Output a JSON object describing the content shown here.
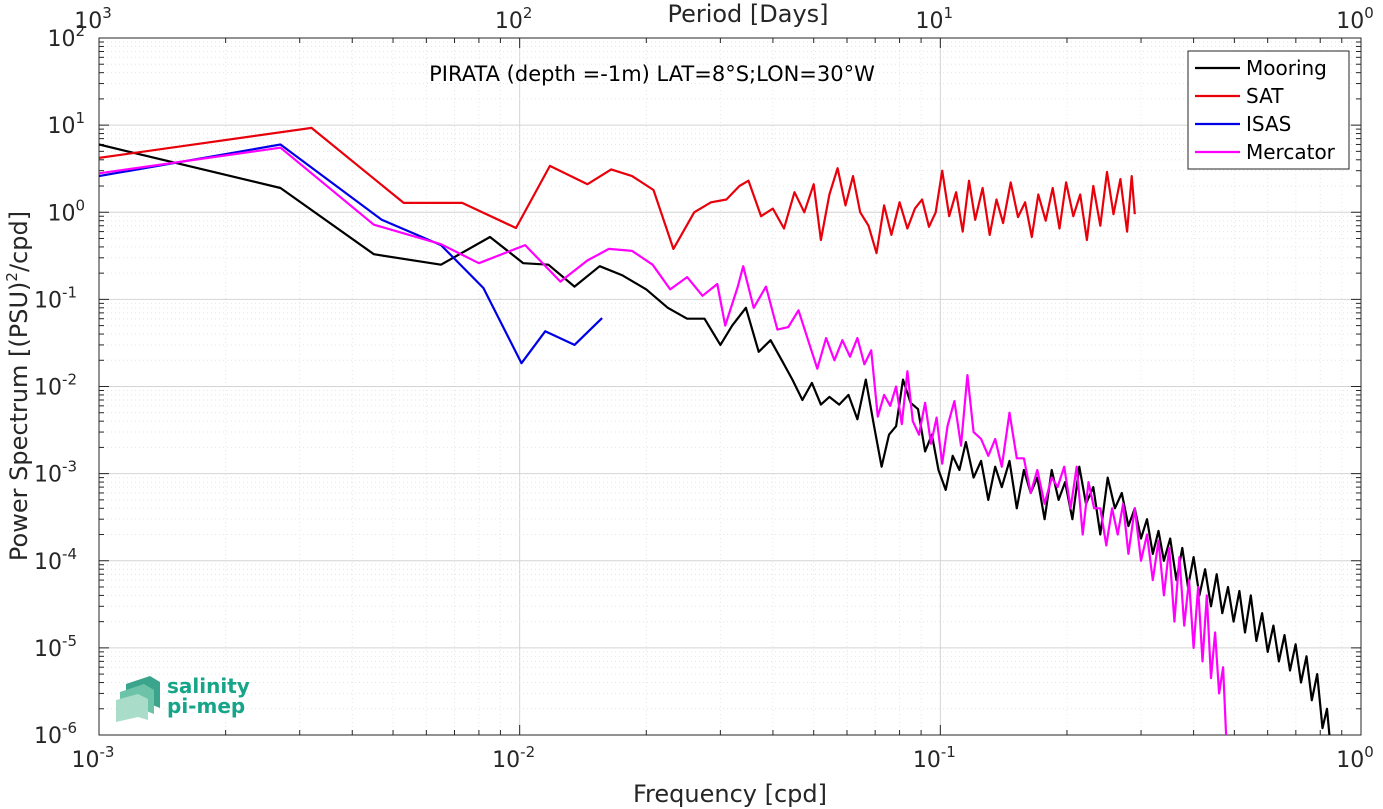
{
  "chart_data": {
    "type": "line",
    "title": "",
    "annotation": "PIRATA (depth =-1m) LAT=8°S;LON=30°W",
    "xlabel": "Frequency [cpd]",
    "ylabel_main": "Power Spectrum [(PSU)",
    "ylabel_sup": "2",
    "ylabel_tail": "/cpd]",
    "top_xlabel": "Period [Days]",
    "x_scale": "log",
    "y_scale": "log",
    "xlim": [
      0.001,
      1
    ],
    "ylim": [
      1e-06,
      100
    ],
    "grid": true,
    "legend_position": "top-right",
    "x_ticks": [
      {
        "base": "10",
        "exp": "-3",
        "value": 0.001
      },
      {
        "base": "10",
        "exp": "-2",
        "value": 0.01
      },
      {
        "base": "10",
        "exp": "-1",
        "value": 0.1
      },
      {
        "base": "10",
        "exp": "0",
        "value": 1
      }
    ],
    "top_ticks": [
      {
        "base": "10",
        "exp": "3",
        "value": 0.001
      },
      {
        "base": "10",
        "exp": "2",
        "value": 0.01
      },
      {
        "base": "10",
        "exp": "1",
        "value": 0.1
      },
      {
        "base": "10",
        "exp": "0",
        "value": 1
      }
    ],
    "y_ticks": [
      {
        "base": "10",
        "exp": "-6",
        "value": 1e-06
      },
      {
        "base": "10",
        "exp": "-5",
        "value": 1e-05
      },
      {
        "base": "10",
        "exp": "-4",
        "value": 0.0001
      },
      {
        "base": "10",
        "exp": "-3",
        "value": 0.001
      },
      {
        "base": "10",
        "exp": "-2",
        "value": 0.01
      },
      {
        "base": "10",
        "exp": "-1",
        "value": 0.1
      },
      {
        "base": "10",
        "exp": "0",
        "value": 1
      },
      {
        "base": "10",
        "exp": "1",
        "value": 10
      },
      {
        "base": "10",
        "exp": "2",
        "value": 100
      }
    ],
    "series": [
      {
        "name": "Mooring",
        "color": "#000000",
        "points": [
          [
            0.001,
            6.0
          ],
          [
            0.0027,
            1.9
          ],
          [
            0.0045,
            0.33
          ],
          [
            0.0065,
            0.25
          ],
          [
            0.0085,
            0.52
          ],
          [
            0.0102,
            0.26
          ],
          [
            0.0117,
            0.25
          ],
          [
            0.0135,
            0.14
          ],
          [
            0.0155,
            0.24
          ],
          [
            0.0175,
            0.19
          ],
          [
            0.02,
            0.13
          ],
          [
            0.0225,
            0.08
          ],
          [
            0.025,
            0.06
          ],
          [
            0.0275,
            0.06
          ],
          [
            0.03,
            0.03
          ],
          [
            0.032,
            0.05
          ],
          [
            0.0345,
            0.08
          ],
          [
            0.037,
            0.025
          ],
          [
            0.0395,
            0.034
          ],
          [
            0.042,
            0.02
          ],
          [
            0.0445,
            0.012
          ],
          [
            0.047,
            0.007
          ],
          [
            0.0495,
            0.011
          ],
          [
            0.052,
            0.0062
          ],
          [
            0.0545,
            0.0076
          ],
          [
            0.0575,
            0.0062
          ],
          [
            0.0605,
            0.008
          ],
          [
            0.0635,
            0.0042
          ],
          [
            0.0665,
            0.012
          ],
          [
            0.0695,
            0.0036
          ],
          [
            0.0725,
            0.0012
          ],
          [
            0.0755,
            0.0028
          ],
          [
            0.0785,
            0.0035
          ],
          [
            0.0815,
            0.012
          ],
          [
            0.085,
            0.0065
          ],
          [
            0.0885,
            0.0055
          ],
          [
            0.092,
            0.0018
          ],
          [
            0.0955,
            0.0028
          ],
          [
            0.099,
            0.0011
          ],
          [
            0.103,
            0.00065
          ],
          [
            0.107,
            0.0016
          ],
          [
            0.111,
            0.0011
          ],
          [
            0.115,
            0.0023
          ],
          [
            0.12,
            0.0009
          ],
          [
            0.125,
            0.0014
          ],
          [
            0.13,
            0.0005
          ],
          [
            0.135,
            0.0012
          ],
          [
            0.14,
            0.0007
          ],
          [
            0.146,
            0.0014
          ],
          [
            0.152,
            0.0004
          ],
          [
            0.158,
            0.0011
          ],
          [
            0.164,
            0.0006
          ],
          [
            0.17,
            0.0009
          ],
          [
            0.177,
            0.0003
          ],
          [
            0.184,
            0.0011
          ],
          [
            0.191,
            0.0005
          ],
          [
            0.198,
            0.0008
          ],
          [
            0.206,
            0.0003
          ],
          [
            0.214,
            0.0012
          ],
          [
            0.222,
            0.00045
          ],
          [
            0.231,
            0.0007
          ],
          [
            0.24,
            0.0002
          ],
          [
            0.25,
            0.0009
          ],
          [
            0.26,
            0.0004
          ],
          [
            0.27,
            0.0006
          ],
          [
            0.28,
            0.00025
          ],
          [
            0.29,
            0.0004
          ],
          [
            0.3,
            0.00018
          ],
          [
            0.31,
            0.0003
          ],
          [
            0.32,
            0.00012
          ],
          [
            0.33,
            0.00022
          ],
          [
            0.34,
            0.0001
          ],
          [
            0.352,
            0.00018
          ],
          [
            0.364,
            6e-05
          ],
          [
            0.376,
            0.00014
          ],
          [
            0.388,
            5e-05
          ],
          [
            0.4,
            0.00011
          ],
          [
            0.413,
            4e-05
          ],
          [
            0.426,
            8e-05
          ],
          [
            0.44,
            3e-05
          ],
          [
            0.454,
            7e-05
          ],
          [
            0.468,
            2.5e-05
          ],
          [
            0.483,
            5e-05
          ],
          [
            0.498,
            2e-05
          ],
          [
            0.514,
            4.5e-05
          ],
          [
            0.53,
            1.5e-05
          ],
          [
            0.547,
            4e-05
          ],
          [
            0.564,
            1.2e-05
          ],
          [
            0.582,
            2.5e-05
          ],
          [
            0.6,
            9e-06
          ],
          [
            0.619,
            1.8e-05
          ],
          [
            0.638,
            7e-06
          ],
          [
            0.658,
            1.4e-05
          ],
          [
            0.678,
            5.5e-06
          ],
          [
            0.699,
            1.1e-05
          ],
          [
            0.72,
            4e-06
          ],
          [
            0.742,
            8e-06
          ],
          [
            0.764,
            2.5e-06
          ],
          [
            0.787,
            5e-06
          ],
          [
            0.81,
            1.2e-06
          ],
          [
            0.83,
            2e-06
          ],
          [
            0.845,
            8e-07
          ]
        ]
      },
      {
        "name": "SAT",
        "color": "#e8000b",
        "points": [
          [
            0.001,
            4.2
          ],
          [
            0.0032,
            9.3
          ],
          [
            0.0053,
            1.28
          ],
          [
            0.0073,
            1.28
          ],
          [
            0.0098,
            0.66
          ],
          [
            0.0118,
            3.4
          ],
          [
            0.0145,
            2.1
          ],
          [
            0.0165,
            3.1
          ],
          [
            0.0185,
            2.6
          ],
          [
            0.0208,
            1.8
          ],
          [
            0.0232,
            0.38
          ],
          [
            0.026,
            1.0
          ],
          [
            0.0285,
            1.3
          ],
          [
            0.031,
            1.4
          ],
          [
            0.0333,
            2.0
          ],
          [
            0.035,
            2.3
          ],
          [
            0.0375,
            0.9
          ],
          [
            0.04,
            1.1
          ],
          [
            0.0425,
            0.65
          ],
          [
            0.045,
            1.7
          ],
          [
            0.0475,
            1.0
          ],
          [
            0.05,
            2.1
          ],
          [
            0.052,
            0.48
          ],
          [
            0.0545,
            1.6
          ],
          [
            0.057,
            3.2
          ],
          [
            0.0595,
            1.2
          ],
          [
            0.062,
            2.6
          ],
          [
            0.0645,
            1.0
          ],
          [
            0.0675,
            0.7
          ],
          [
            0.0705,
            0.34
          ],
          [
            0.0735,
            1.2
          ],
          [
            0.0765,
            0.55
          ],
          [
            0.08,
            1.3
          ],
          [
            0.0835,
            0.65
          ],
          [
            0.087,
            1.1
          ],
          [
            0.0905,
            1.4
          ],
          [
            0.094,
            0.68
          ],
          [
            0.0975,
            1.0
          ],
          [
            0.101,
            3.0
          ],
          [
            0.105,
            0.9
          ],
          [
            0.109,
            1.7
          ],
          [
            0.113,
            0.6
          ],
          [
            0.117,
            2.3
          ],
          [
            0.121,
            0.82
          ],
          [
            0.126,
            1.9
          ],
          [
            0.131,
            0.55
          ],
          [
            0.136,
            1.4
          ],
          [
            0.141,
            0.75
          ],
          [
            0.147,
            2.2
          ],
          [
            0.153,
            0.88
          ],
          [
            0.159,
            1.3
          ],
          [
            0.165,
            0.52
          ],
          [
            0.171,
            1.6
          ],
          [
            0.178,
            0.8
          ],
          [
            0.185,
            1.9
          ],
          [
            0.192,
            0.65
          ],
          [
            0.199,
            2.2
          ],
          [
            0.207,
            0.9
          ],
          [
            0.215,
            1.6
          ],
          [
            0.223,
            0.48
          ],
          [
            0.231,
            2.0
          ],
          [
            0.24,
            0.7
          ],
          [
            0.249,
            2.9
          ],
          [
            0.258,
            0.95
          ],
          [
            0.268,
            2.4
          ],
          [
            0.278,
            0.6
          ],
          [
            0.285,
            2.6
          ],
          [
            0.29,
            0.95
          ]
        ]
      },
      {
        "name": "ISAS",
        "color": "#0000e6",
        "points": [
          [
            0.001,
            2.6
          ],
          [
            0.0027,
            6.0
          ],
          [
            0.0047,
            0.82
          ],
          [
            0.0065,
            0.42
          ],
          [
            0.0082,
            0.135
          ],
          [
            0.0101,
            0.0185
          ],
          [
            0.0115,
            0.043
          ],
          [
            0.0135,
            0.03
          ],
          [
            0.0157,
            0.061
          ]
        ]
      },
      {
        "name": "Mercator",
        "color": "#ff00ff",
        "points": [
          [
            0.001,
            2.8
          ],
          [
            0.0027,
            5.5
          ],
          [
            0.0045,
            0.72
          ],
          [
            0.0065,
            0.43
          ],
          [
            0.008,
            0.26
          ],
          [
            0.0103,
            0.42
          ],
          [
            0.0125,
            0.16
          ],
          [
            0.0145,
            0.28
          ],
          [
            0.0163,
            0.38
          ],
          [
            0.0185,
            0.36
          ],
          [
            0.0207,
            0.25
          ],
          [
            0.0228,
            0.13
          ],
          [
            0.025,
            0.18
          ],
          [
            0.0272,
            0.11
          ],
          [
            0.0295,
            0.15
          ],
          [
            0.0308,
            0.05
          ],
          [
            0.033,
            0.14
          ],
          [
            0.034,
            0.24
          ],
          [
            0.036,
            0.08
          ],
          [
            0.0385,
            0.14
          ],
          [
            0.041,
            0.045
          ],
          [
            0.0435,
            0.048
          ],
          [
            0.046,
            0.075
          ],
          [
            0.0485,
            0.034
          ],
          [
            0.051,
            0.016
          ],
          [
            0.0535,
            0.036
          ],
          [
            0.056,
            0.02
          ],
          [
            0.0585,
            0.034
          ],
          [
            0.061,
            0.022
          ],
          [
            0.0635,
            0.036
          ],
          [
            0.066,
            0.018
          ],
          [
            0.0685,
            0.026
          ],
          [
            0.071,
            0.0045
          ],
          [
            0.0735,
            0.008
          ],
          [
            0.076,
            0.006
          ],
          [
            0.0785,
            0.01
          ],
          [
            0.081,
            0.0037
          ],
          [
            0.0835,
            0.015
          ],
          [
            0.086,
            0.004
          ],
          [
            0.089,
            0.0028
          ],
          [
            0.092,
            0.0065
          ],
          [
            0.095,
            0.0022
          ],
          [
            0.098,
            0.0044
          ],
          [
            0.101,
            0.0013
          ],
          [
            0.104,
            0.0035
          ],
          [
            0.108,
            0.0068
          ],
          [
            0.112,
            0.0021
          ],
          [
            0.116,
            0.0135
          ],
          [
            0.12,
            0.003
          ],
          [
            0.125,
            0.0025
          ],
          [
            0.13,
            0.0016
          ],
          [
            0.135,
            0.0025
          ],
          [
            0.14,
            0.0012
          ],
          [
            0.146,
            0.005
          ],
          [
            0.152,
            0.0015
          ],
          [
            0.158,
            0.0015
          ],
          [
            0.164,
            0.0006
          ],
          [
            0.17,
            0.0011
          ],
          [
            0.177,
            0.00045
          ],
          [
            0.184,
            0.0009
          ],
          [
            0.19,
            0.0007
          ],
          [
            0.197,
            0.0012
          ],
          [
            0.204,
            0.0004
          ],
          [
            0.211,
            0.0012
          ],
          [
            0.218,
            0.0002
          ],
          [
            0.225,
            0.0008
          ],
          [
            0.232,
            0.0004
          ],
          [
            0.24,
            0.0004
          ],
          [
            0.248,
            0.00015
          ],
          [
            0.256,
            0.0004
          ],
          [
            0.264,
            0.0002
          ],
          [
            0.272,
            0.00045
          ],
          [
            0.28,
            0.00012
          ],
          [
            0.29,
            0.0004
          ],
          [
            0.3,
            0.0001
          ],
          [
            0.31,
            0.0002
          ],
          [
            0.32,
            6e-05
          ],
          [
            0.33,
            0.00017
          ],
          [
            0.34,
            4e-05
          ],
          [
            0.35,
            0.00014
          ],
          [
            0.36,
            2e-05
          ],
          [
            0.37,
            0.00011
          ],
          [
            0.38,
            1.8e-05
          ],
          [
            0.39,
            6e-05
          ],
          [
            0.4,
            1e-05
          ],
          [
            0.41,
            5e-05
          ],
          [
            0.42,
            7e-06
          ],
          [
            0.43,
            4e-05
          ],
          [
            0.44,
            4.5e-06
          ],
          [
            0.45,
            1.5e-05
          ],
          [
            0.46,
            3e-06
          ],
          [
            0.47,
            6e-06
          ],
          [
            0.478,
            1e-06
          ]
        ]
      }
    ]
  },
  "logo": {
    "line1": "salinity",
    "line2": "pi-mep",
    "color": "#17a589"
  }
}
